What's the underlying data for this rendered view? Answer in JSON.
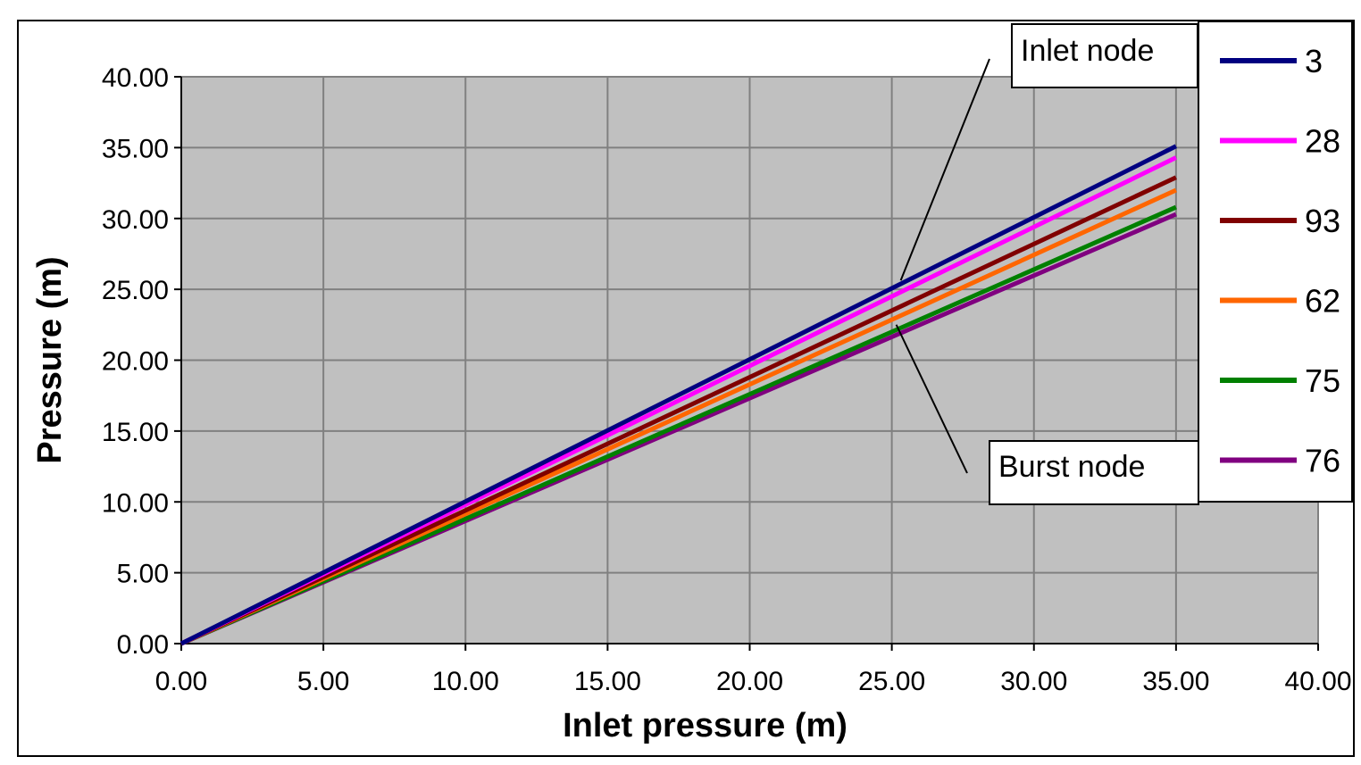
{
  "chart_data": {
    "type": "line",
    "title": "",
    "xlabel": "Inlet pressure (m)",
    "ylabel": "Pressure (m)",
    "xlim": [
      0,
      40
    ],
    "ylim": [
      0,
      40
    ],
    "x_ticks": [
      "0.00",
      "5.00",
      "10.00",
      "15.00",
      "20.00",
      "25.00",
      "30.00",
      "35.00",
      "40.00"
    ],
    "y_ticks": [
      "0.00",
      "5.00",
      "10.00",
      "15.00",
      "20.00",
      "25.00",
      "30.00",
      "35.00",
      "40.00"
    ],
    "grid": true,
    "background_color": "#c0c0c0",
    "legend_position": "right",
    "x": [
      0,
      35
    ],
    "series": [
      {
        "name": "3",
        "color": "#000080",
        "values": [
          0,
          35.1
        ]
      },
      {
        "name": "28",
        "color": "#ff00ff",
        "values": [
          0,
          34.3
        ]
      },
      {
        "name": "93",
        "color": "#800000",
        "values": [
          0,
          32.9
        ]
      },
      {
        "name": "62",
        "color": "#ff6600",
        "values": [
          0,
          32.0
        ]
      },
      {
        "name": "75",
        "color": "#008000",
        "values": [
          0,
          30.8
        ]
      },
      {
        "name": "76",
        "color": "#800080",
        "values": [
          0,
          30.3
        ]
      }
    ],
    "annotations": [
      {
        "text": "Inlet node",
        "points_to": {
          "x": 25.0,
          "y": 25.0
        }
      },
      {
        "text": "Burst node",
        "points_to": {
          "x": 25.0,
          "y": 22.0
        }
      }
    ]
  }
}
